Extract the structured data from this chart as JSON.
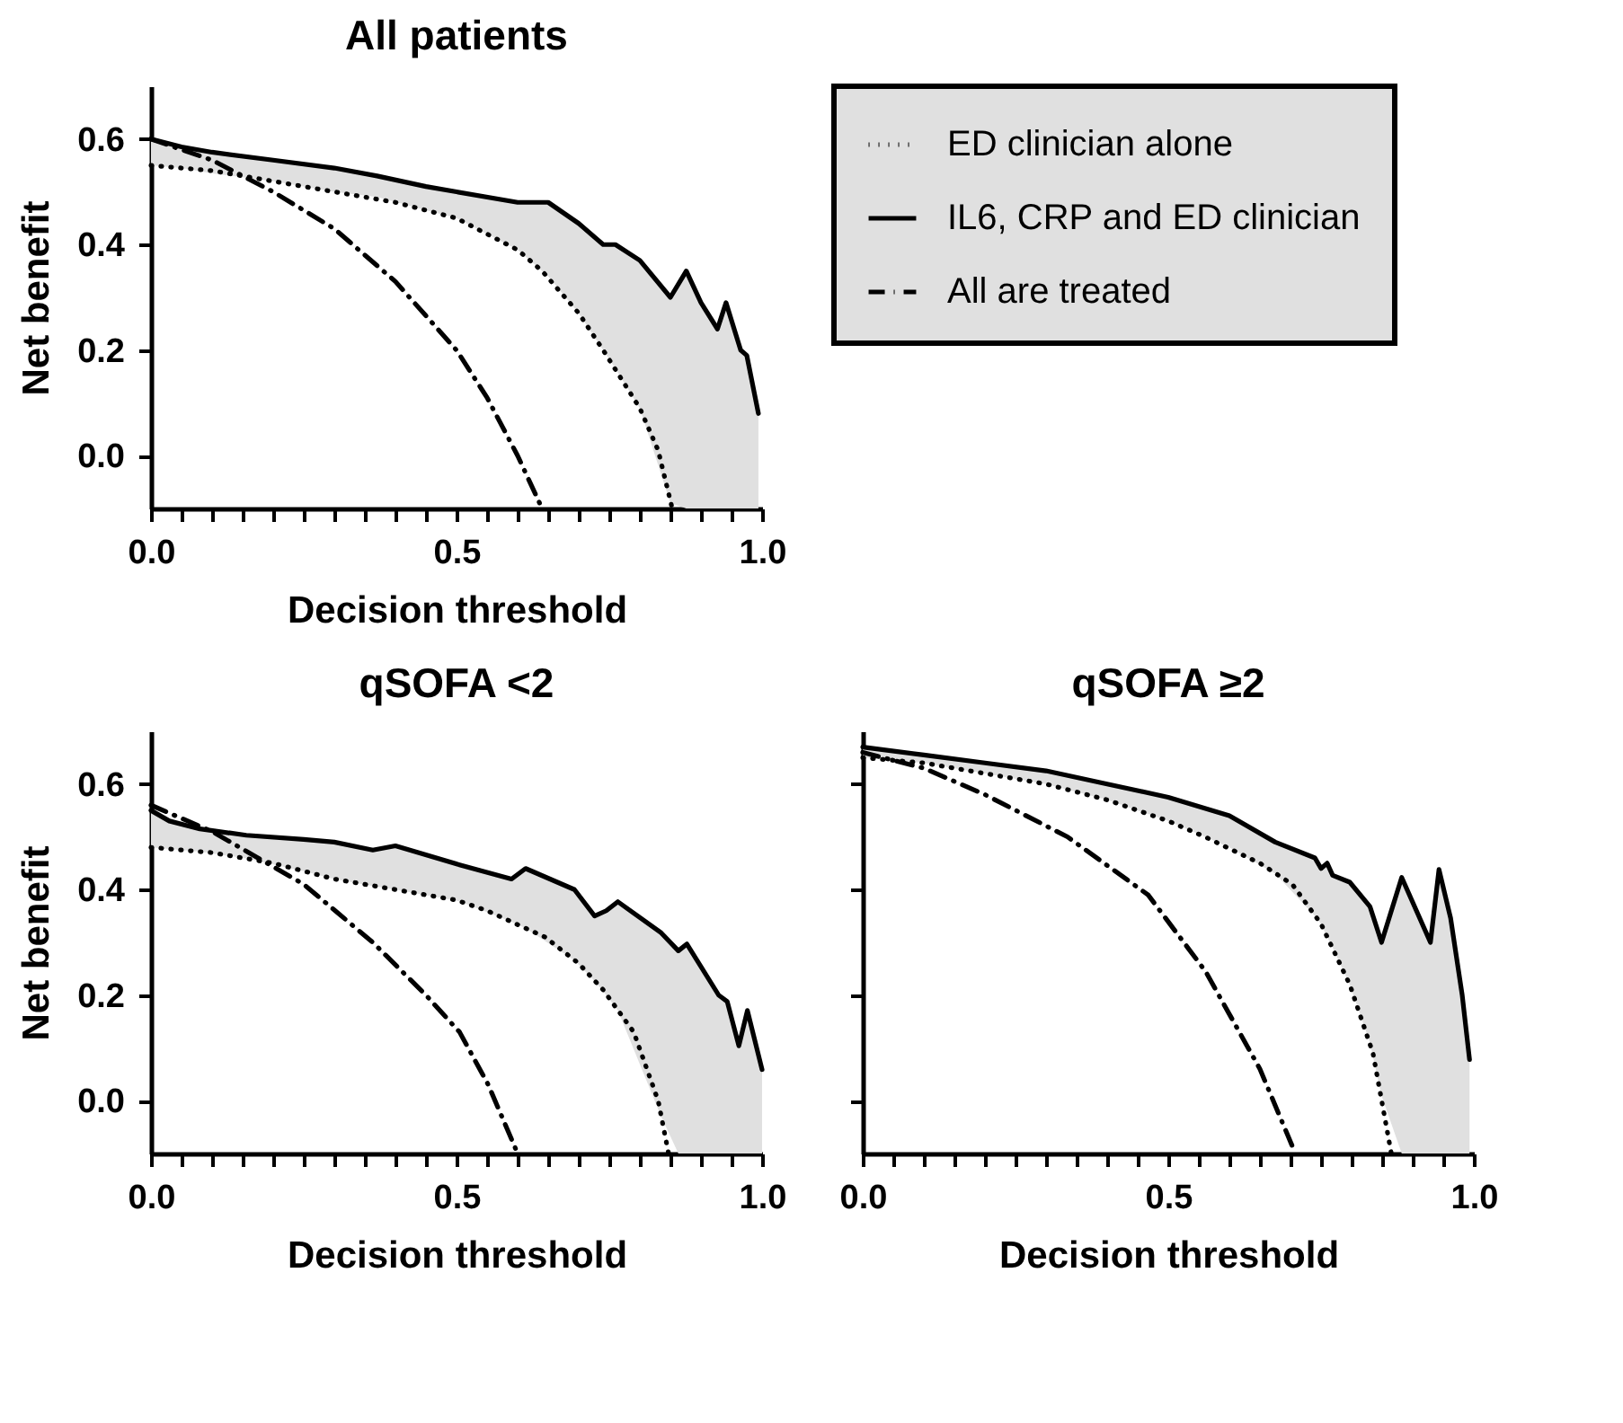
{
  "chart_data": [
    {
      "type": "line",
      "title": "All patients",
      "xlabel": "Decision threshold",
      "ylabel": "Net benefit",
      "xlim": [
        0,
        1
      ],
      "ylim": [
        -0.1,
        0.7
      ],
      "xticks": [
        {
          "value": 0,
          "label": "0.0"
        },
        {
          "value": 0.05,
          "label": null
        },
        {
          "value": 0.1,
          "label": null
        },
        {
          "value": 0.15,
          "label": null
        },
        {
          "value": 0.2,
          "label": null
        },
        {
          "value": 0.25,
          "label": null
        },
        {
          "value": 0.3,
          "label": null
        },
        {
          "value": 0.35,
          "label": null
        },
        {
          "value": 0.4,
          "label": null
        },
        {
          "value": 0.45,
          "label": null
        },
        {
          "value": 0.5,
          "label": "0.5"
        },
        {
          "value": 0.55,
          "label": null
        },
        {
          "value": 0.6,
          "label": null
        },
        {
          "value": 0.65,
          "label": null
        },
        {
          "value": 0.7,
          "label": null
        },
        {
          "value": 0.75,
          "label": null
        },
        {
          "value": 0.8,
          "label": null
        },
        {
          "value": 0.85,
          "label": null
        },
        {
          "value": 0.9,
          "label": null
        },
        {
          "value": 0.95,
          "label": null
        },
        {
          "value": 1,
          "label": "1.0"
        }
      ],
      "yticks": [
        {
          "value": 0,
          "label": "0.0"
        },
        0.2,
        0.4,
        0.6
      ],
      "legend": "right",
      "series": [
        {
          "name": "ED clinician alone",
          "color": "#000000",
          "line_style": "dotted",
          "x": [
            0,
            0.1,
            0.2,
            0.3,
            0.4,
            0.5,
            0.6,
            0.64,
            0.7,
            0.74,
            0.8,
            0.83,
            0.853
          ],
          "values": [
            0.55,
            0.54,
            0.52,
            0.5,
            0.48,
            0.45,
            0.39,
            0.35,
            0.27,
            0.2,
            0.09,
            0.01,
            -0.1
          ]
        },
        {
          "name": "IL6, CRP and ED clinician",
          "color": "#000000",
          "line_style": "solid",
          "x": [
            0,
            0.05,
            0.1,
            0.2,
            0.3,
            0.37,
            0.45,
            0.5,
            0.6,
            0.65,
            0.7,
            0.74,
            0.76,
            0.8,
            0.85,
            0.876,
            0.9,
            0.927,
            0.941,
            0.965,
            0.975,
            0.994
          ],
          "values": [
            0.6,
            0.585,
            0.575,
            0.56,
            0.545,
            0.53,
            0.51,
            0.5,
            0.48,
            0.48,
            0.44,
            0.4,
            0.4,
            0.37,
            0.3,
            0.35,
            0.29,
            0.24,
            0.29,
            0.2,
            0.19,
            0.08
          ],
          "lower": [
            0.55,
            0.545,
            0.535,
            0.52,
            0.5,
            0.49,
            0.465,
            0.45,
            0.39,
            0.34,
            0.27,
            0.2,
            0.165,
            0.09,
            -0.09,
            -0.1,
            -0.1,
            -0.1,
            -0.1,
            -0.1,
            -0.1,
            -0.1
          ],
          "upper": [
            0.6,
            0.585,
            0.575,
            0.56,
            0.545,
            0.53,
            0.51,
            0.5,
            0.48,
            0.48,
            0.44,
            0.4,
            0.4,
            0.37,
            0.3,
            0.35,
            0.29,
            0.24,
            0.29,
            0.2,
            0.19,
            0.08
          ]
        },
        {
          "name": "All are treated",
          "color": "#000000",
          "line_style": "dashdot",
          "x": [
            0,
            0.1,
            0.2,
            0.3,
            0.4,
            0.5,
            0.55,
            0.6,
            0.64
          ],
          "values": [
            0.6,
            0.56,
            0.5,
            0.43,
            0.33,
            0.2,
            0.11,
            0.0,
            -0.1
          ]
        }
      ]
    },
    {
      "type": "line",
      "title": "qSOFA <2",
      "xlabel": "Decision threshold",
      "ylabel": "Net benefit",
      "xlim": [
        0,
        1
      ],
      "ylim": [
        -0.1,
        0.7
      ],
      "xticks": [
        {
          "value": 0,
          "label": "0.0"
        },
        {
          "value": 0.05,
          "label": null
        },
        {
          "value": 0.1,
          "label": null
        },
        {
          "value": 0.15,
          "label": null
        },
        {
          "value": 0.2,
          "label": null
        },
        {
          "value": 0.25,
          "label": null
        },
        {
          "value": 0.3,
          "label": null
        },
        {
          "value": 0.35,
          "label": null
        },
        {
          "value": 0.4,
          "label": null
        },
        {
          "value": 0.45,
          "label": null
        },
        {
          "value": 0.5,
          "label": "0.5"
        },
        {
          "value": 0.55,
          "label": null
        },
        {
          "value": 0.6,
          "label": null
        },
        {
          "value": 0.65,
          "label": null
        },
        {
          "value": 0.7,
          "label": null
        },
        {
          "value": 0.75,
          "label": null
        },
        {
          "value": 0.8,
          "label": null
        },
        {
          "value": 0.85,
          "label": null
        },
        {
          "value": 0.9,
          "label": null
        },
        {
          "value": 0.95,
          "label": null
        },
        {
          "value": 1,
          "label": "1.0"
        }
      ],
      "yticks": [
        {
          "value": 0,
          "label": "0.0"
        },
        0.2,
        0.4,
        0.6
      ],
      "series": [
        {
          "color": "#000000",
          "line_style": "dotted",
          "x": [
            0,
            0.1,
            0.2,
            0.3,
            0.4,
            0.5,
            0.55,
            0.645,
            0.7,
            0.74,
            0.79,
            0.83,
            0.847
          ],
          "values": [
            0.48,
            0.47,
            0.45,
            0.42,
            0.4,
            0.38,
            0.36,
            0.31,
            0.26,
            0.21,
            0.13,
            0.0,
            -0.1
          ]
        },
        {
          "color": "#000000",
          "line_style": "solid",
          "x": [
            0,
            0.03,
            0.08,
            0.156,
            0.25,
            0.3,
            0.363,
            0.4,
            0.505,
            0.59,
            0.613,
            0.693,
            0.726,
            0.745,
            0.764,
            0.835,
            0.863,
            0.877,
            0.929,
            0.943,
            0.962,
            0.976,
            1.0
          ],
          "values": [
            0.55,
            0.53,
            0.515,
            0.503,
            0.495,
            0.49,
            0.475,
            0.483,
            0.447,
            0.42,
            0.44,
            0.4,
            0.35,
            0.36,
            0.377,
            0.318,
            0.284,
            0.297,
            0.2,
            0.188,
            0.104,
            0.171,
            0.059
          ],
          "lower": [
            0.48,
            0.477,
            0.472,
            0.459,
            0.435,
            0.42,
            0.407,
            0.4,
            0.378,
            0.339,
            0.327,
            0.266,
            0.227,
            0.2,
            0.171,
            -0.03,
            -0.1,
            -0.1,
            -0.1,
            -0.1,
            -0.1,
            -0.1,
            -0.1
          ],
          "upper": [
            0.55,
            0.53,
            0.515,
            0.503,
            0.495,
            0.49,
            0.475,
            0.483,
            0.447,
            0.42,
            0.44,
            0.4,
            0.35,
            0.36,
            0.377,
            0.318,
            0.284,
            0.297,
            0.2,
            0.188,
            0.104,
            0.171,
            0.059
          ]
        },
        {
          "color": "#000000",
          "line_style": "dashdot",
          "x": [
            0,
            0.1,
            0.175,
            0.25,
            0.363,
            0.45,
            0.505,
            0.552,
            0.6
          ],
          "values": [
            0.56,
            0.51,
            0.46,
            0.41,
            0.3,
            0.2,
            0.13,
            0.03,
            -0.1
          ]
        }
      ]
    },
    {
      "type": "line",
      "title": "qSOFA ≥2",
      "xlabel": "Decision threshold",
      "xlim": [
        0,
        1
      ],
      "ylim": [
        -0.1,
        0.7
      ],
      "tick_labels": "x",
      "yticks": [
        0,
        0.2,
        0.4,
        0.6
      ],
      "xticks": [
        {
          "value": 0,
          "label": "0.0"
        },
        {
          "value": 0.05,
          "label": null
        },
        {
          "value": 0.1,
          "label": null
        },
        {
          "value": 0.15,
          "label": null
        },
        {
          "value": 0.2,
          "label": null
        },
        {
          "value": 0.25,
          "label": null
        },
        {
          "value": 0.3,
          "label": null
        },
        {
          "value": 0.35,
          "label": null
        },
        {
          "value": 0.4,
          "label": null
        },
        {
          "value": 0.45,
          "label": null
        },
        {
          "value": 0.5,
          "label": "0.5"
        },
        {
          "value": 0.55,
          "label": null
        },
        {
          "value": 0.6,
          "label": null
        },
        {
          "value": 0.65,
          "label": null
        },
        {
          "value": 0.7,
          "label": null
        },
        {
          "value": 0.75,
          "label": null
        },
        {
          "value": 0.8,
          "label": null
        },
        {
          "value": 0.85,
          "label": null
        },
        {
          "value": 0.9,
          "label": null
        },
        {
          "value": 0.95,
          "label": null
        },
        {
          "value": 1,
          "label": "1.0"
        }
      ],
      "series": [
        {
          "color": "#000000",
          "line_style": "dotted",
          "x": [
            0,
            0.1,
            0.2,
            0.3,
            0.4,
            0.5,
            0.56,
            0.65,
            0.703,
            0.75,
            0.797,
            0.835,
            0.865
          ],
          "values": [
            0.65,
            0.64,
            0.62,
            0.6,
            0.57,
            0.53,
            0.5,
            0.45,
            0.41,
            0.335,
            0.22,
            0.09,
            -0.1
          ]
        },
        {
          "color": "#000000",
          "line_style": "solid",
          "x": [
            0,
            0.1,
            0.2,
            0.3,
            0.4,
            0.5,
            0.6,
            0.675,
            0.74,
            0.75,
            0.76,
            0.769,
            0.797,
            0.83,
            0.849,
            0.882,
            0.929,
            0.943,
            0.962,
            0.981,
            0.993
          ],
          "values": [
            0.67,
            0.655,
            0.64,
            0.625,
            0.6,
            0.575,
            0.54,
            0.49,
            0.46,
            0.44,
            0.45,
            0.427,
            0.414,
            0.368,
            0.3,
            0.423,
            0.3,
            0.438,
            0.346,
            0.2,
            0.078
          ],
          "lower": [
            0.65,
            0.64,
            0.62,
            0.6,
            0.57,
            0.53,
            0.48,
            0.43,
            0.35,
            0.335,
            0.31,
            0.29,
            0.22,
            0.11,
            0.01,
            -0.1,
            -0.1,
            -0.1,
            -0.1,
            -0.1,
            -0.1
          ],
          "upper": [
            0.67,
            0.655,
            0.64,
            0.625,
            0.6,
            0.575,
            0.54,
            0.49,
            0.46,
            0.44,
            0.45,
            0.427,
            0.414,
            0.368,
            0.3,
            0.423,
            0.3,
            0.438,
            0.346,
            0.2,
            0.078
          ]
        },
        {
          "color": "#000000",
          "line_style": "dashdot",
          "x": [
            0,
            0.1,
            0.2,
            0.335,
            0.467,
            0.561,
            0.65,
            0.708
          ],
          "values": [
            0.66,
            0.63,
            0.58,
            0.5,
            0.39,
            0.245,
            0.06,
            -0.1
          ]
        }
      ]
    }
  ]
}
